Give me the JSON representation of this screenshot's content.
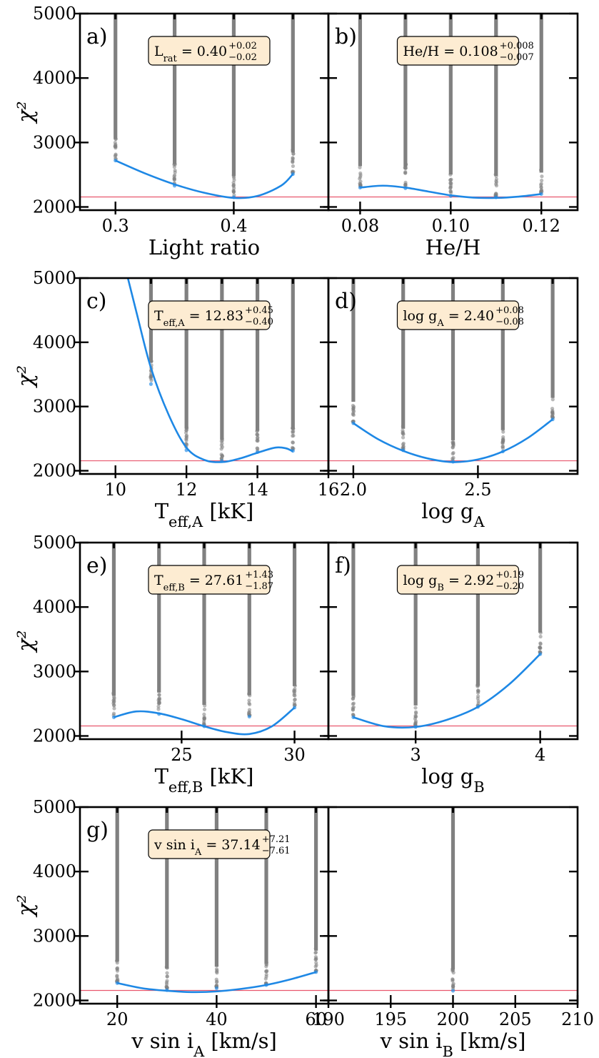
{
  "figure": {
    "y_axis_label": "χ²",
    "y_range": [
      1950,
      5000
    ],
    "y_ticks": [
      "5000",
      "4000",
      "3000",
      "2000"
    ],
    "y_tick_values": [
      5000,
      4000,
      3000,
      2000
    ],
    "threshold_chi2": 2155,
    "colors": {
      "scatter": "#808080",
      "curve": "#1e88e5",
      "threshold": "#e8576e",
      "box_fill": "#fdecd2"
    }
  },
  "chart_data": [
    {
      "type": "scatter",
      "panel_label": "a)",
      "xlabel": "Light ratio",
      "xlim": [
        0.27,
        0.48
      ],
      "x_ticks": [
        {
          "value": 0.3,
          "label": "0.3"
        },
        {
          "value": 0.4,
          "label": "0.4"
        }
      ],
      "ylim": [
        1950,
        5000
      ],
      "grid_points": [
        {
          "x": 0.3,
          "chi2_min": 2720
        },
        {
          "x": 0.35,
          "chi2_min": 2330
        },
        {
          "x": 0.4,
          "chi2_min": 2150
        },
        {
          "x": 0.45,
          "chi2_min": 2510
        }
      ],
      "fit_curve": [
        [
          0.3,
          2720
        ],
        [
          0.325,
          2520
        ],
        [
          0.35,
          2350
        ],
        [
          0.375,
          2220
        ],
        [
          0.4,
          2140
        ],
        [
          0.42,
          2170
        ],
        [
          0.44,
          2330
        ],
        [
          0.45,
          2510
        ]
      ],
      "best_fit_text": {
        "param": "L_rat",
        "value": "0.40",
        "upper": "+0.02",
        "lower": "−0.02"
      }
    },
    {
      "type": "scatter",
      "panel_label": "b)",
      "xlabel": "He/H",
      "xlim": [
        0.073,
        0.128
      ],
      "x_ticks": [
        {
          "value": 0.08,
          "label": "0.08"
        },
        {
          "value": 0.1,
          "label": "0.10"
        },
        {
          "value": 0.12,
          "label": "0.12"
        }
      ],
      "ylim": [
        1950,
        5000
      ],
      "grid_points": [
        {
          "x": 0.08,
          "chi2_min": 2300
        },
        {
          "x": 0.09,
          "chi2_min": 2290
        },
        {
          "x": 0.1,
          "chi2_min": 2170
        },
        {
          "x": 0.11,
          "chi2_min": 2150
        },
        {
          "x": 0.12,
          "chi2_min": 2200
        }
      ],
      "fit_curve": [
        [
          0.08,
          2300
        ],
        [
          0.085,
          2330
        ],
        [
          0.09,
          2300
        ],
        [
          0.095,
          2240
        ],
        [
          0.1,
          2180
        ],
        [
          0.105,
          2145
        ],
        [
          0.11,
          2140
        ],
        [
          0.115,
          2160
        ],
        [
          0.12,
          2200
        ]
      ],
      "best_fit_text": {
        "param": "He/H",
        "value": "0.108",
        "upper": "+0.008",
        "lower": "−0.007"
      }
    },
    {
      "type": "scatter",
      "panel_label": "c)",
      "xlabel": "T_eff,A [kK]",
      "xlim": [
        9.0,
        16.0
      ],
      "x_ticks": [
        {
          "value": 10,
          "label": "10"
        },
        {
          "value": 12,
          "label": "12"
        },
        {
          "value": 14,
          "label": "14"
        },
        {
          "value": 16,
          "label": "16"
        }
      ],
      "ylim": [
        1950,
        5000
      ],
      "grid_points": [
        {
          "x": 11,
          "chi2_min": 3350
        },
        {
          "x": 12,
          "chi2_min": 2320
        },
        {
          "x": 13,
          "chi2_min": 2150
        },
        {
          "x": 14,
          "chi2_min": 2290
        },
        {
          "x": 15,
          "chi2_min": 2310
        }
      ],
      "fit_curve": [
        [
          10.35,
          5000
        ],
        [
          10.6,
          4450
        ],
        [
          11.0,
          3600
        ],
        [
          11.5,
          2870
        ],
        [
          12.0,
          2360
        ],
        [
          12.5,
          2170
        ],
        [
          13.0,
          2135
        ],
        [
          13.5,
          2190
        ],
        [
          14.0,
          2280
        ],
        [
          14.5,
          2360
        ],
        [
          14.8,
          2350
        ],
        [
          15.0,
          2300
        ]
      ],
      "best_fit_text": {
        "param": "T_eff,A",
        "value": "12.83",
        "upper": "+0.45",
        "lower": "−0.40"
      }
    },
    {
      "type": "scatter",
      "panel_label": "d)",
      "xlabel": "log g_A",
      "xlim": [
        1.9,
        2.9
      ],
      "x_ticks": [
        {
          "value": 2.0,
          "label": "2.0"
        },
        {
          "value": 2.5,
          "label": "2.5"
        }
      ],
      "ylim": [
        1950,
        5000
      ],
      "grid_points": [
        {
          "x": 2.0,
          "chi2_min": 2740
        },
        {
          "x": 2.2,
          "chi2_min": 2320
        },
        {
          "x": 2.4,
          "chi2_min": 2140
        },
        {
          "x": 2.6,
          "chi2_min": 2300
        },
        {
          "x": 2.8,
          "chi2_min": 2800
        }
      ],
      "fit_curve": [
        [
          2.0,
          2740
        ],
        [
          2.1,
          2490
        ],
        [
          2.2,
          2310
        ],
        [
          2.3,
          2190
        ],
        [
          2.4,
          2135
        ],
        [
          2.5,
          2175
        ],
        [
          2.6,
          2300
        ],
        [
          2.7,
          2510
        ],
        [
          2.8,
          2800
        ]
      ],
      "best_fit_text": {
        "param": "log g_A",
        "value": "2.40",
        "upper": "+0.08",
        "lower": "−0.08"
      }
    },
    {
      "type": "scatter",
      "panel_label": "e)",
      "xlabel": "T_eff,B [kK]",
      "xlim": [
        20.5,
        31.5
      ],
      "x_ticks": [
        {
          "value": 25,
          "label": "25"
        },
        {
          "value": 30,
          "label": "30"
        }
      ],
      "ylim": [
        1950,
        5000
      ],
      "grid_points": [
        {
          "x": 22,
          "chi2_min": 2290
        },
        {
          "x": 24,
          "chi2_min": 2340
        },
        {
          "x": 26,
          "chi2_min": 2150
        },
        {
          "x": 28,
          "chi2_min": 2300
        },
        {
          "x": 30,
          "chi2_min": 2440
        }
      ],
      "fit_curve": [
        [
          22,
          2290
        ],
        [
          23,
          2380
        ],
        [
          24,
          2350
        ],
        [
          25,
          2260
        ],
        [
          26,
          2150
        ],
        [
          27,
          2060
        ],
        [
          28,
          2030
        ],
        [
          29,
          2150
        ],
        [
          30,
          2440
        ]
      ],
      "best_fit_text": {
        "param": "T_eff,B",
        "value": "27.61",
        "upper": "+1.43",
        "lower": "−1.87"
      }
    },
    {
      "type": "scatter",
      "panel_label": "f)",
      "xlabel": "log g_B",
      "xlim": [
        2.3,
        4.3
      ],
      "x_ticks": [
        {
          "value": 3,
          "label": "3"
        },
        {
          "value": 4,
          "label": "4"
        }
      ],
      "ylim": [
        1950,
        5000
      ],
      "grid_points": [
        {
          "x": 2.5,
          "chi2_min": 2290
        },
        {
          "x": 3.0,
          "chi2_min": 2140
        },
        {
          "x": 3.5,
          "chi2_min": 2450
        },
        {
          "x": 4.0,
          "chi2_min": 3270
        }
      ],
      "fit_curve": [
        [
          2.5,
          2290
        ],
        [
          2.75,
          2150
        ],
        [
          3.0,
          2140
        ],
        [
          3.25,
          2250
        ],
        [
          3.5,
          2450
        ],
        [
          3.75,
          2800
        ],
        [
          4.0,
          3270
        ]
      ],
      "best_fit_text": {
        "param": "log g_B",
        "value": "2.92",
        "upper": "+0.19",
        "lower": "−0.20"
      }
    },
    {
      "type": "scatter",
      "panel_label": "g)",
      "xlabel": "v sin i_A [km/s]",
      "xlim": [
        12.5,
        62.5
      ],
      "x_ticks": [
        {
          "value": 20,
          "label": "20"
        },
        {
          "value": 40,
          "label": "40"
        },
        {
          "value": 60,
          "label": "60"
        }
      ],
      "ylim": [
        1950,
        5000
      ],
      "grid_points": [
        {
          "x": 20,
          "chi2_min": 2270
        },
        {
          "x": 30,
          "chi2_min": 2160
        },
        {
          "x": 40,
          "chi2_min": 2190
        },
        {
          "x": 50,
          "chi2_min": 2240
        },
        {
          "x": 60,
          "chi2_min": 2440
        }
      ],
      "fit_curve": [
        [
          20,
          2270
        ],
        [
          25,
          2190
        ],
        [
          30,
          2150
        ],
        [
          35,
          2130
        ],
        [
          40,
          2140
        ],
        [
          45,
          2180
        ],
        [
          50,
          2240
        ],
        [
          55,
          2330
        ],
        [
          60,
          2440
        ]
      ],
      "best_fit_text": {
        "param": "v sin i_A",
        "value": "37.14",
        "upper": "+7.21",
        "lower": "−7.61"
      }
    },
    {
      "type": "scatter",
      "panel_label": "",
      "xlabel": "v sin i_B [km/s]",
      "xlim": [
        190,
        210
      ],
      "x_ticks": [
        {
          "value": 190,
          "label": "190"
        },
        {
          "value": 195,
          "label": "195"
        },
        {
          "value": 200,
          "label": "200"
        },
        {
          "value": 205,
          "label": "205"
        },
        {
          "value": 210,
          "label": "210"
        }
      ],
      "ylim": [
        1950,
        5000
      ],
      "grid_points": [
        {
          "x": 200,
          "chi2_min": 2150
        }
      ],
      "fit_curve": [],
      "best_fit_text": null
    }
  ]
}
